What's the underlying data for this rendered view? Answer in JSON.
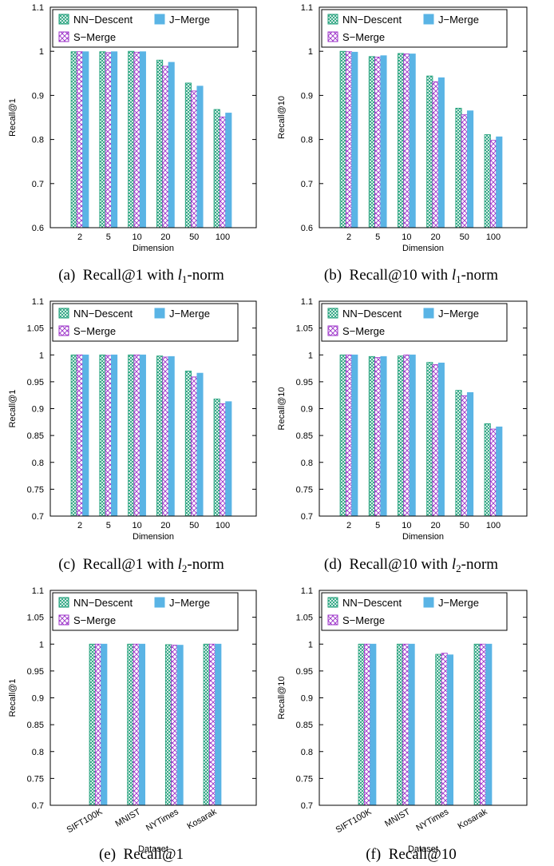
{
  "legend": {
    "nn": "NN−Descent",
    "j": "J−Merge",
    "s": "S−Merge"
  },
  "colors": {
    "nn": "#1b9e77",
    "s": "#9b30c8",
    "j": "#5ab4e5"
  },
  "chart_data": [
    {
      "id": "a",
      "type": "bar",
      "caption": {
        "label": "(a)",
        "text": "Recall@1 with ",
        "var": "l",
        "sub": "1",
        "tail": "-norm"
      },
      "xlabel": "Dimension",
      "ylabel": "Recall@1",
      "ylim": [
        0.6,
        1.1
      ],
      "yticks": [
        "0.6",
        "0.7",
        "0.8",
        "0.9",
        "1",
        "1.1"
      ],
      "categories": [
        "2",
        "5",
        "10",
        "20",
        "50",
        "100"
      ],
      "series": [
        {
          "name": "NN−Descent",
          "key": "nn",
          "values": [
            0.999,
            0.999,
            1.0,
            0.98,
            0.928,
            0.868
          ]
        },
        {
          "name": "S−Merge",
          "key": "s",
          "values": [
            0.999,
            0.997,
            0.998,
            0.966,
            0.91,
            0.851
          ]
        },
        {
          "name": "J−Merge",
          "key": "j",
          "values": [
            0.999,
            0.999,
            0.999,
            0.975,
            0.921,
            0.86
          ]
        }
      ]
    },
    {
      "id": "b",
      "type": "bar",
      "caption": {
        "label": "(b)",
        "text": "Recall@10 with ",
        "var": "l",
        "sub": "1",
        "tail": "-norm"
      },
      "xlabel": "Dimension",
      "ylabel": "Recall@10",
      "ylim": [
        0.6,
        1.1
      ],
      "yticks": [
        "0.6",
        "0.7",
        "0.8",
        "0.9",
        "1",
        "1.1"
      ],
      "categories": [
        "2",
        "5",
        "10",
        "20",
        "50",
        "100"
      ],
      "series": [
        {
          "name": "NN−Descent",
          "key": "nn",
          "values": [
            1.0,
            0.988,
            0.995,
            0.944,
            0.871,
            0.811
          ]
        },
        {
          "name": "S−Merge",
          "key": "s",
          "values": [
            0.999,
            0.987,
            0.994,
            0.931,
            0.856,
            0.798
          ]
        },
        {
          "name": "J−Merge",
          "key": "j",
          "values": [
            0.998,
            0.99,
            0.994,
            0.94,
            0.865,
            0.806
          ]
        }
      ]
    },
    {
      "id": "c",
      "type": "bar",
      "caption": {
        "label": "(c)",
        "text": "Recall@1 with ",
        "var": "l",
        "sub": "2",
        "tail": "-norm"
      },
      "xlabel": "Dimension",
      "ylabel": "Recall@1",
      "ylim": [
        0.7,
        1.1
      ],
      "yticks": [
        "0.7",
        "0.75",
        "0.8",
        "0.85",
        "0.9",
        "0.95",
        "1",
        "1.05",
        "1.1"
      ],
      "categories": [
        "2",
        "5",
        "10",
        "20",
        "50",
        "100"
      ],
      "series": [
        {
          "name": "NN−Descent",
          "key": "nn",
          "values": [
            1.0,
            1.0,
            1.0,
            0.998,
            0.97,
            0.918
          ]
        },
        {
          "name": "S−Merge",
          "key": "s",
          "values": [
            1.0,
            0.999,
            1.0,
            0.996,
            0.959,
            0.909
          ]
        },
        {
          "name": "J−Merge",
          "key": "j",
          "values": [
            1.0,
            1.0,
            1.0,
            0.997,
            0.966,
            0.913
          ]
        }
      ]
    },
    {
      "id": "d",
      "type": "bar",
      "caption": {
        "label": "(d)",
        "text": "Recall@10 with ",
        "var": "l",
        "sub": "2",
        "tail": "-norm"
      },
      "xlabel": "Dimension",
      "ylabel": "Recall@10",
      "ylim": [
        0.7,
        1.1
      ],
      "yticks": [
        "0.7",
        "0.75",
        "0.8",
        "0.85",
        "0.9",
        "0.95",
        "1",
        "1.05",
        "1.1"
      ],
      "categories": [
        "2",
        "5",
        "10",
        "20",
        "50",
        "100"
      ],
      "series": [
        {
          "name": "NN−Descent",
          "key": "nn",
          "values": [
            1.0,
            0.997,
            0.998,
            0.986,
            0.934,
            0.872
          ]
        },
        {
          "name": "S−Merge",
          "key": "s",
          "values": [
            1.0,
            0.995,
            1.0,
            0.982,
            0.924,
            0.862
          ]
        },
        {
          "name": "J−Merge",
          "key": "j",
          "values": [
            1.0,
            0.997,
            1.0,
            0.985,
            0.93,
            0.866
          ]
        }
      ]
    },
    {
      "id": "e",
      "type": "bar",
      "caption": {
        "label": "(e)",
        "text": "Recall@1",
        "var": "",
        "sub": "",
        "tail": ""
      },
      "xlabel": "Dataset",
      "ylabel": "Recall@1",
      "ylim": [
        0.7,
        1.1
      ],
      "yticks": [
        "0.7",
        "0.75",
        "0.8",
        "0.85",
        "0.9",
        "0.95",
        "1",
        "1.05",
        "1.1"
      ],
      "categories": [
        "SIFT100K",
        "MNIST",
        "NYTimes",
        "Kosarak"
      ],
      "rotated_x": true,
      "series": [
        {
          "name": "NN−Descent",
          "key": "nn",
          "values": [
            1.0,
            1.0,
            0.999,
            1.0
          ]
        },
        {
          "name": "S−Merge",
          "key": "s",
          "values": [
            1.0,
            1.0,
            0.998,
            1.0
          ]
        },
        {
          "name": "J−Merge",
          "key": "j",
          "values": [
            1.0,
            1.0,
            0.998,
            1.0
          ]
        }
      ]
    },
    {
      "id": "f",
      "type": "bar",
      "caption": {
        "label": "(f)",
        "text": "Recall@10",
        "var": "",
        "sub": "",
        "tail": ""
      },
      "xlabel": "Dataset",
      "ylabel": "Recall@10",
      "ylim": [
        0.7,
        1.1
      ],
      "yticks": [
        "0.7",
        "0.75",
        "0.8",
        "0.85",
        "0.9",
        "0.95",
        "1",
        "1.05",
        "1.1"
      ],
      "categories": [
        "SIFT100K",
        "MNIST",
        "NYTimes",
        "Kosarak"
      ],
      "rotated_x": true,
      "series": [
        {
          "name": "NN−Descent",
          "key": "nn",
          "values": [
            1.0,
            1.0,
            0.981,
            1.0
          ]
        },
        {
          "name": "S−Merge",
          "key": "s",
          "values": [
            1.0,
            1.0,
            0.983,
            1.0
          ]
        },
        {
          "name": "J−Merge",
          "key": "j",
          "values": [
            1.0,
            1.0,
            0.98,
            1.0
          ]
        }
      ]
    }
  ]
}
